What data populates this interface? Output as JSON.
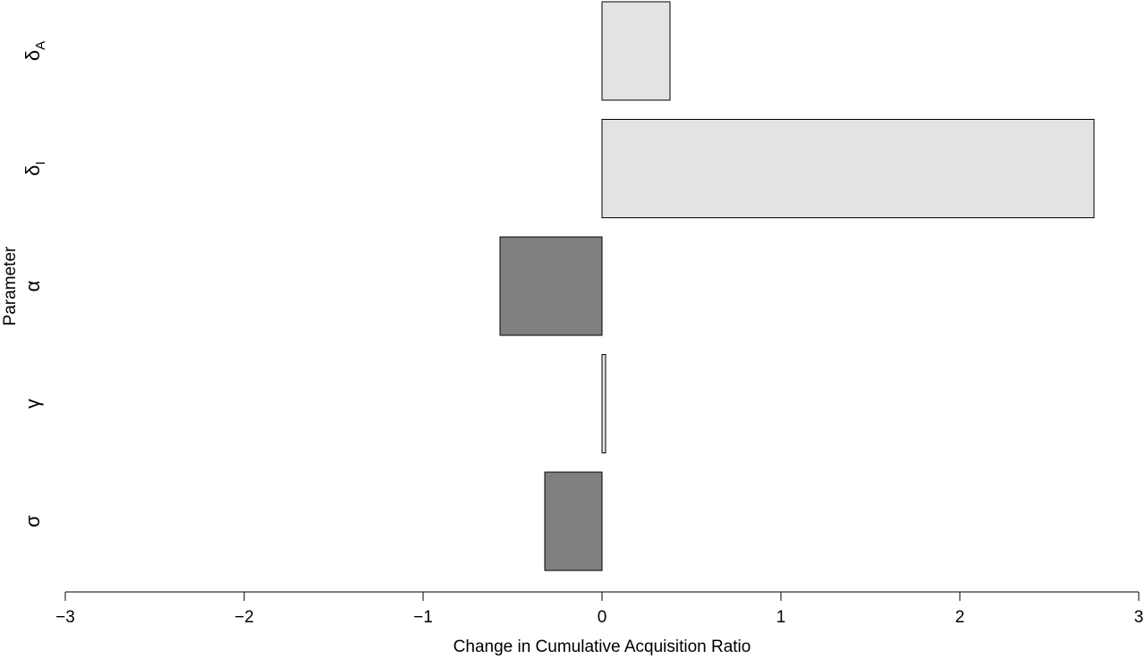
{
  "chart_data": {
    "type": "bar",
    "orientation": "horizontal",
    "categories": [
      "δA",
      "δI",
      "α",
      "γ",
      "σ"
    ],
    "category_labels": [
      {
        "main": "δ",
        "sub": "A"
      },
      {
        "main": "δ",
        "sub": "I"
      },
      {
        "main": "α",
        "sub": ""
      },
      {
        "main": "γ",
        "sub": ""
      },
      {
        "main": "σ",
        "sub": ""
      }
    ],
    "values": [
      0.38,
      2.75,
      -0.57,
      0.02,
      -0.32
    ],
    "xlabel": "Change in Cumulative Acquisition Ratio",
    "ylabel": "Parameter",
    "xlim": [
      -3,
      3
    ],
    "xticks": [
      -3,
      -2,
      -1,
      0,
      1,
      2,
      3
    ],
    "xtick_labels": [
      "−3",
      "−2",
      "−1",
      "0",
      "1",
      "2",
      "3"
    ],
    "grid": false,
    "colors": {
      "positive": "#e3e3e3",
      "negative": "#808080",
      "stroke": "#000000"
    }
  }
}
